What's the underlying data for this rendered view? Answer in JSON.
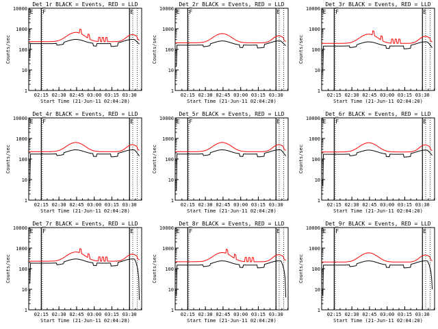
{
  "chart_data": {
    "type": "line",
    "xlabel": "Start Time (21-Jun-11 02:04:20)",
    "ylabel": "Counts/sec",
    "x_ticks": [
      "02:15",
      "02:30",
      "02:45",
      "03:00",
      "03:15",
      "03:30"
    ],
    "x_tick_minutes": [
      10.67,
      25.67,
      40.67,
      55.67,
      70.67,
      85.67
    ],
    "xlim_minutes": [
      0,
      96
    ],
    "y_scale": "log",
    "y_ticks": [
      "1",
      "10",
      "100",
      "1000",
      "10000"
    ],
    "ylim": [
      1,
      10000
    ],
    "vertical_lines": {
      "solid_minutes": [
        10.67,
        85.67
      ],
      "dotted_minutes": [
        11.6,
        88.4,
        92.2
      ],
      "labels": [
        {
          "text": "E",
          "minute": 1.0
        },
        {
          "text": "F",
          "minute": 11.8
        },
        {
          "text": "E",
          "minute": 86.2
        }
      ]
    },
    "series_colors": {
      "events": "#000000",
      "lld": "#ff0000"
    },
    "panels": [
      {
        "title": "Det_1r BLACK = Events, RED = LLD",
        "events_base": 190,
        "events_dip_start": 30,
        "lld_factor": 1.25,
        "end_drop": 180,
        "start_dip": 40,
        "spikes": true
      },
      {
        "title": "Det_2r BLACK = Events, RED = LLD",
        "events_base": 160,
        "events_dip_start": 20,
        "lld_factor": 1.3,
        "end_drop": 150,
        "start_dip": 15,
        "spikes": false
      },
      {
        "title": "Det_3r BLACK = Events, RED = LLD",
        "events_base": 145,
        "events_dip_start": 10,
        "lld_factor": 1.35,
        "end_drop": 120,
        "start_dip": 10,
        "spikes": true
      },
      {
        "title": "Det_4r BLACK = Events, RED = LLD",
        "events_base": 175,
        "events_dip_start": 10,
        "lld_factor": 1.3,
        "end_drop": 140,
        "start_dip": 10,
        "spikes": false
      },
      {
        "title": "Det_5r BLACK = Events, RED = LLD",
        "events_base": 175,
        "events_dip_start": 3,
        "lld_factor": 1.3,
        "end_drop": 140,
        "start_dip": 3,
        "spikes": false
      },
      {
        "title": "Det_6r BLACK = Events, RED = LLD",
        "events_base": 170,
        "events_dip_start": 5,
        "lld_factor": 1.3,
        "end_drop": 150,
        "start_dip": 5,
        "spikes": false
      },
      {
        "title": "Det_7r BLACK = Events, RED = LLD",
        "events_base": 185,
        "events_dip_start": 20,
        "lld_factor": 1.25,
        "end_drop": 3,
        "start_dip": 20,
        "spikes": true
      },
      {
        "title": "Det_8r BLACK = Events, RED = LLD",
        "events_base": 150,
        "events_dip_start": 5,
        "lld_factor": 1.45,
        "end_drop": 4,
        "start_dip": 5,
        "spikes": true
      },
      {
        "title": "Det_9r BLACK = Events, RED = LLD",
        "events_base": 150,
        "events_dip_start": 5,
        "lld_factor": 1.4,
        "end_drop": 10,
        "start_dip": 5,
        "spikes": false
      }
    ]
  }
}
